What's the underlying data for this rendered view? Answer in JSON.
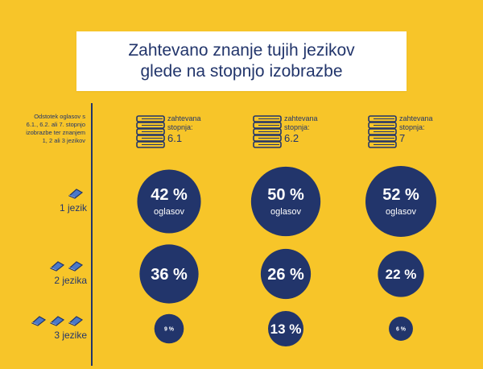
{
  "title_line1": "Zahtevano znanje tujih jezikov",
  "title_line2": "glede na stopnjo izobrazbe",
  "left_description": [
    "Odstotek oglasov s",
    "6.1., 6.2. ali 7. stopnjo",
    "izobrazbe ter znanjem",
    "1, 2 ali 3 jezikov"
  ],
  "chart_data": {
    "type": "table",
    "title": "Zahtevano znanje tujih jezikov glede na stopnjo izobrazbe",
    "columns": [
      {
        "prefix": "zahtevana",
        "label": "stopnja:",
        "level": "6.1"
      },
      {
        "prefix": "zahtevana",
        "label": "stopnja:",
        "level": "6.2"
      },
      {
        "prefix": "zahtevana",
        "label": "stopnja:",
        "level": "7"
      }
    ],
    "rows": [
      {
        "label": "1 jezik",
        "books": 1,
        "values": [
          42,
          50,
          52
        ],
        "labels": [
          "42 %",
          "50 %",
          "52 %"
        ],
        "sublabel": "oglasov"
      },
      {
        "label": "2 jezika",
        "books": 2,
        "values": [
          36,
          26,
          22
        ],
        "labels": [
          "36 %",
          "26 %",
          "22 %"
        ],
        "sublabel": ""
      },
      {
        "label": "3 jezike",
        "books": 3,
        "values": [
          9,
          13,
          6
        ],
        "labels": [
          "9 %",
          "13 %",
          "6 %"
        ],
        "sublabel": ""
      }
    ],
    "colors": {
      "circle": "#22356B",
      "background": "#F7C529",
      "book_light": "#4A78C8"
    }
  }
}
